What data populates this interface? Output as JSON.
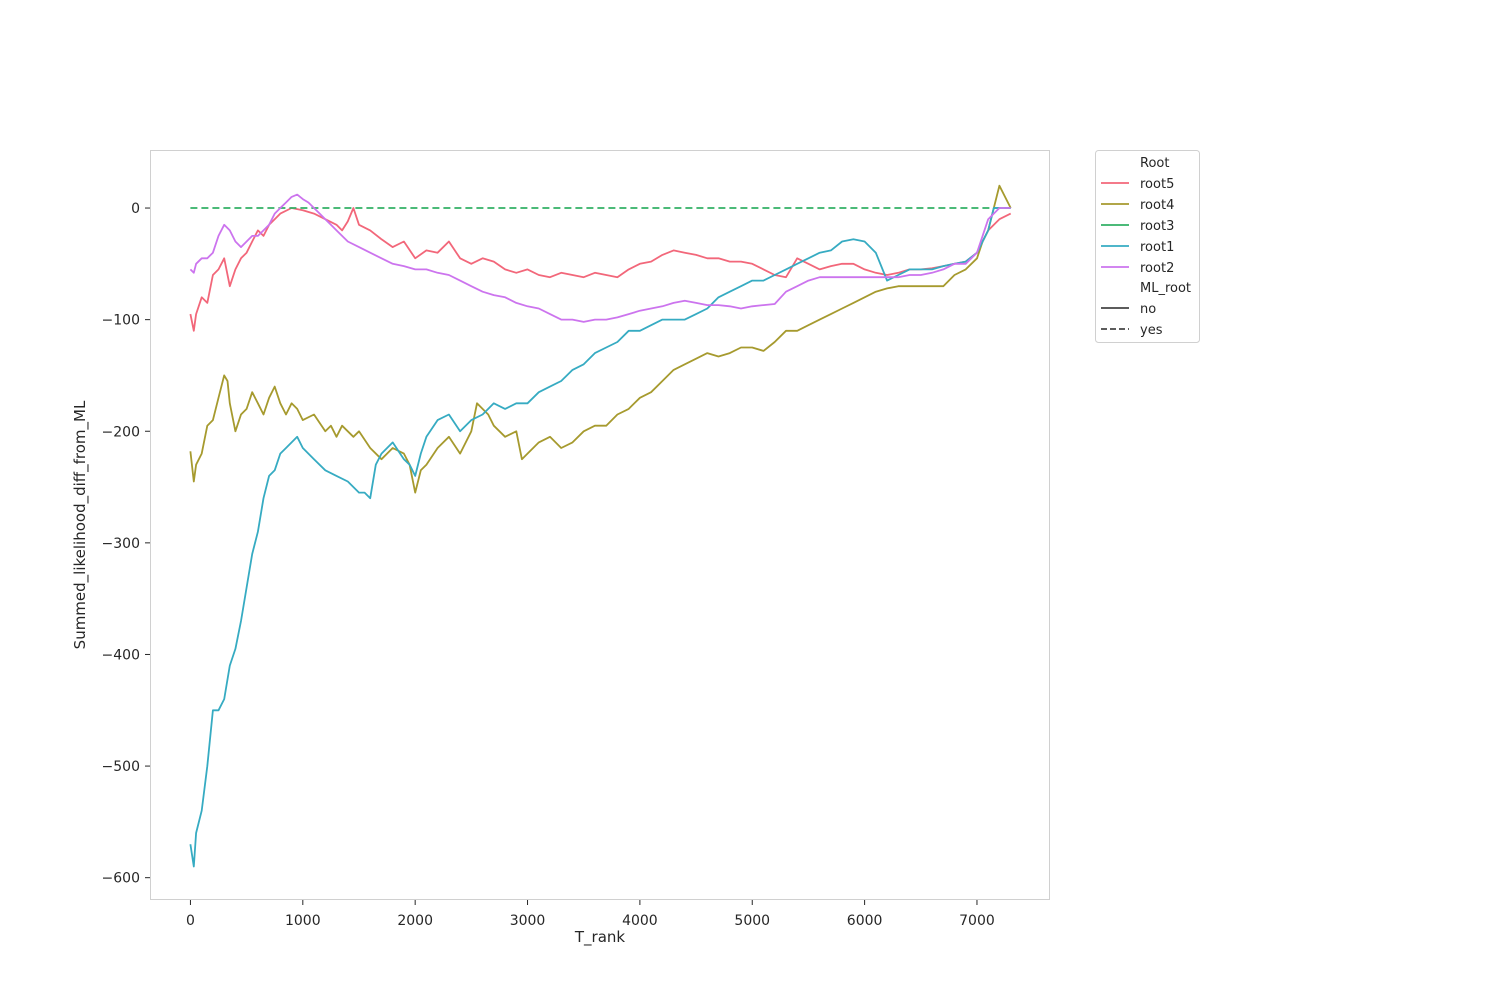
{
  "chart_data": {
    "type": "line",
    "xlabel": "T_rank",
    "ylabel": "Summed_likelihood_diff_from_ML",
    "xlim": [
      -360,
      7650
    ],
    "ylim": [
      -620,
      52
    ],
    "x_ticks": [
      0,
      1000,
      2000,
      3000,
      4000,
      5000,
      6000,
      7000
    ],
    "x_tick_labels": [
      "0",
      "1000",
      "2000",
      "3000",
      "4000",
      "5000",
      "6000",
      "7000"
    ],
    "y_ticks": [
      0,
      -100,
      -200,
      -300,
      -400,
      -500,
      -600
    ],
    "y_tick_labels": [
      "0",
      "−100",
      "−200",
      "−300",
      "−400",
      "−500",
      "−600"
    ],
    "grid": false,
    "legend": {
      "placement": "outside upper right",
      "hue_title": "Root",
      "style_title": "ML_root",
      "style_entries": [
        {
          "label": "no",
          "dash": "solid"
        },
        {
          "label": "yes",
          "dash": "dashed"
        }
      ]
    },
    "series": [
      {
        "name": "root5",
        "color": "#f2677a",
        "style": "solid",
        "x": [
          0,
          30,
          50,
          100,
          150,
          200,
          250,
          300,
          350,
          400,
          450,
          500,
          550,
          600,
          650,
          700,
          750,
          800,
          900,
          1000,
          1100,
          1200,
          1300,
          1350,
          1400,
          1450,
          1500,
          1600,
          1700,
          1800,
          1900,
          2000,
          2100,
          2200,
          2300,
          2400,
          2500,
          2600,
          2700,
          2800,
          2900,
          3000,
          3100,
          3200,
          3300,
          3400,
          3500,
          3600,
          3700,
          3800,
          3900,
          4000,
          4100,
          4200,
          4300,
          4400,
          4500,
          4600,
          4700,
          4800,
          4900,
          5000,
          5100,
          5200,
          5300,
          5400,
          5500,
          5600,
          5700,
          5800,
          5900,
          6000,
          6100,
          6200,
          6300,
          6400,
          6500,
          6600,
          6700,
          6800,
          6900,
          7000,
          7100,
          7200,
          7300
        ],
        "y": [
          -95,
          -110,
          -95,
          -80,
          -85,
          -60,
          -55,
          -45,
          -70,
          -55,
          -45,
          -40,
          -30,
          -20,
          -25,
          -15,
          -10,
          -5,
          0,
          -2,
          -5,
          -10,
          -15,
          -20,
          -12,
          0,
          -15,
          -20,
          -28,
          -35,
          -30,
          -45,
          -38,
          -40,
          -30,
          -45,
          -50,
          -45,
          -48,
          -55,
          -58,
          -55,
          -60,
          -62,
          -58,
          -60,
          -62,
          -58,
          -60,
          -62,
          -55,
          -50,
          -48,
          -42,
          -38,
          -40,
          -42,
          -45,
          -45,
          -48,
          -48,
          -50,
          -55,
          -60,
          -62,
          -45,
          -50,
          -55,
          -52,
          -50,
          -50,
          -55,
          -58,
          -60,
          -58,
          -55,
          -55,
          -54,
          -52,
          -50,
          -48,
          -40,
          -20,
          -10,
          -5
        ]
      },
      {
        "name": "root4",
        "color": "#a69a2e",
        "style": "solid",
        "x": [
          0,
          30,
          50,
          100,
          150,
          200,
          250,
          300,
          330,
          350,
          400,
          450,
          500,
          550,
          600,
          650,
          700,
          750,
          800,
          850,
          900,
          950,
          1000,
          1100,
          1200,
          1250,
          1300,
          1350,
          1400,
          1450,
          1500,
          1600,
          1700,
          1800,
          1900,
          1950,
          2000,
          2050,
          2100,
          2200,
          2300,
          2400,
          2500,
          2550,
          2600,
          2650,
          2700,
          2800,
          2900,
          2950,
          3000,
          3100,
          3200,
          3300,
          3400,
          3500,
          3600,
          3700,
          3800,
          3900,
          4000,
          4100,
          4200,
          4300,
          4400,
          4500,
          4600,
          4700,
          4800,
          4900,
          5000,
          5100,
          5200,
          5300,
          5400,
          5500,
          5600,
          5700,
          5800,
          5900,
          6000,
          6100,
          6200,
          6300,
          6400,
          6500,
          6600,
          6700,
          6800,
          6900,
          7000,
          7050,
          7100,
          7150,
          7200,
          7300
        ],
        "y": [
          -218,
          -245,
          -230,
          -220,
          -195,
          -190,
          -170,
          -150,
          -155,
          -175,
          -200,
          -185,
          -180,
          -165,
          -175,
          -185,
          -170,
          -160,
          -175,
          -185,
          -175,
          -180,
          -190,
          -185,
          -200,
          -195,
          -205,
          -195,
          -200,
          -205,
          -200,
          -215,
          -225,
          -215,
          -220,
          -230,
          -255,
          -235,
          -230,
          -215,
          -205,
          -220,
          -200,
          -175,
          -180,
          -185,
          -195,
          -205,
          -200,
          -225,
          -220,
          -210,
          -205,
          -215,
          -210,
          -200,
          -195,
          -195,
          -185,
          -180,
          -170,
          -165,
          -155,
          -145,
          -140,
          -135,
          -130,
          -133,
          -130,
          -125,
          -125,
          -128,
          -120,
          -110,
          -110,
          -105,
          -100,
          -95,
          -90,
          -85,
          -80,
          -75,
          -72,
          -70,
          -70,
          -70,
          -70,
          -70,
          -60,
          -55,
          -45,
          -30,
          -20,
          0,
          20,
          0
        ]
      },
      {
        "name": "root3",
        "color": "#32b166",
        "style": "dashed",
        "x": [
          0,
          7300
        ],
        "y": [
          0,
          0
        ]
      },
      {
        "name": "root1",
        "color": "#36abc2",
        "style": "solid",
        "x": [
          0,
          30,
          50,
          100,
          150,
          200,
          250,
          300,
          350,
          400,
          450,
          500,
          550,
          600,
          650,
          700,
          750,
          800,
          850,
          900,
          950,
          1000,
          1100,
          1200,
          1300,
          1400,
          1500,
          1550,
          1600,
          1650,
          1700,
          1800,
          1900,
          1950,
          2000,
          2050,
          2100,
          2200,
          2300,
          2400,
          2500,
          2600,
          2700,
          2800,
          2900,
          3000,
          3100,
          3200,
          3300,
          3400,
          3500,
          3600,
          3700,
          3800,
          3900,
          4000,
          4100,
          4200,
          4300,
          4400,
          4500,
          4600,
          4700,
          4800,
          4900,
          5000,
          5100,
          5200,
          5300,
          5400,
          5500,
          5600,
          5700,
          5800,
          5900,
          6000,
          6100,
          6200,
          6300,
          6400,
          6500,
          6600,
          6700,
          6800,
          6900,
          7000,
          7100,
          7150,
          7200,
          7300
        ],
        "y": [
          -570,
          -590,
          -560,
          -540,
          -500,
          -450,
          -450,
          -440,
          -410,
          -395,
          -370,
          -340,
          -310,
          -290,
          -260,
          -240,
          -235,
          -220,
          -215,
          -210,
          -205,
          -215,
          -225,
          -235,
          -240,
          -245,
          -255,
          -255,
          -260,
          -230,
          -220,
          -210,
          -225,
          -230,
          -240,
          -220,
          -205,
          -190,
          -185,
          -200,
          -190,
          -185,
          -175,
          -180,
          -175,
          -175,
          -165,
          -160,
          -155,
          -145,
          -140,
          -130,
          -125,
          -120,
          -110,
          -110,
          -105,
          -100,
          -100,
          -100,
          -95,
          -90,
          -80,
          -75,
          -70,
          -65,
          -65,
          -60,
          -55,
          -50,
          -45,
          -40,
          -38,
          -30,
          -28,
          -30,
          -40,
          -65,
          -60,
          -55,
          -55,
          -55,
          -52,
          -50,
          -48,
          -40,
          -20,
          0,
          0,
          0
        ]
      },
      {
        "name": "root2",
        "color": "#cc74ee",
        "style": "solid",
        "x": [
          0,
          30,
          50,
          100,
          150,
          200,
          250,
          300,
          350,
          400,
          450,
          500,
          550,
          600,
          650,
          700,
          750,
          800,
          850,
          900,
          950,
          1000,
          1050,
          1100,
          1150,
          1200,
          1250,
          1300,
          1350,
          1400,
          1500,
          1600,
          1700,
          1800,
          1900,
          2000,
          2100,
          2200,
          2300,
          2400,
          2500,
          2600,
          2700,
          2800,
          2900,
          3000,
          3100,
          3200,
          3300,
          3400,
          3500,
          3600,
          3700,
          3800,
          3900,
          4000,
          4100,
          4200,
          4300,
          4400,
          4500,
          4600,
          4700,
          4800,
          4900,
          5000,
          5100,
          5200,
          5300,
          5400,
          5500,
          5600,
          5700,
          5800,
          5900,
          6000,
          6100,
          6200,
          6300,
          6400,
          6500,
          6600,
          6700,
          6800,
          6900,
          7000,
          7100,
          7200,
          7300
        ],
        "y": [
          -55,
          -58,
          -50,
          -45,
          -45,
          -40,
          -25,
          -15,
          -20,
          -30,
          -35,
          -30,
          -25,
          -25,
          -20,
          -15,
          -5,
          0,
          5,
          10,
          12,
          8,
          5,
          0,
          -5,
          -10,
          -15,
          -20,
          -25,
          -30,
          -35,
          -40,
          -45,
          -50,
          -52,
          -55,
          -55,
          -58,
          -60,
          -65,
          -70,
          -75,
          -78,
          -80,
          -85,
          -88,
          -90,
          -95,
          -100,
          -100,
          -102,
          -100,
          -100,
          -98,
          -95,
          -92,
          -90,
          -88,
          -85,
          -83,
          -85,
          -87,
          -87,
          -88,
          -90,
          -88,
          -87,
          -86,
          -75,
          -70,
          -65,
          -62,
          -62,
          -62,
          -62,
          -62,
          -62,
          -62,
          -62,
          -60,
          -60,
          -58,
          -55,
          -50,
          -50,
          -40,
          -10,
          0,
          0
        ]
      }
    ]
  }
}
